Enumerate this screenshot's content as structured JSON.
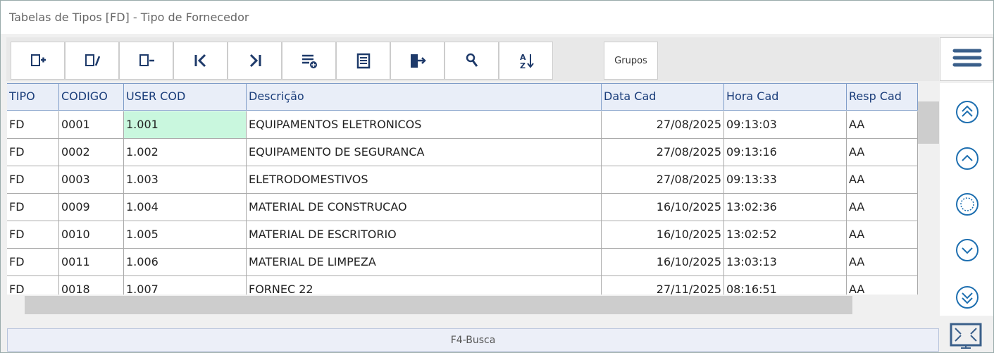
{
  "window": {
    "title": "Tabelas de Tipos [FD] - Tipo de Fornecedor"
  },
  "toolbar": {
    "groups_button": "Grupos"
  },
  "table": {
    "columns": [
      "TIPO",
      "CODIGO",
      "USER COD",
      "Descrição",
      "Data Cad",
      "Hora Cad",
      "Resp Cad"
    ],
    "rows": [
      [
        "FD",
        "0001",
        "1.001",
        "EQUIPAMENTOS ELETRONICOS",
        "27/08/2025",
        "09:13:03",
        "AA"
      ],
      [
        "FD",
        "0002",
        "1.002",
        "EQUIPAMENTO DE SEGURANCA",
        "27/08/2025",
        "09:13:16",
        "AA"
      ],
      [
        "FD",
        "0003",
        "1.003",
        "ELETRODOMESTIVOS",
        "27/08/2025",
        "09:13:33",
        "AA"
      ],
      [
        "FD",
        "0009",
        "1.004",
        "MATERIAL DE CONSTRUCAO",
        "16/10/2025",
        "13:02:36",
        "AA"
      ],
      [
        "FD",
        "0010",
        "1.005",
        "MATERIAL DE ESCRITORIO",
        "16/10/2025",
        "13:02:52",
        "AA"
      ],
      [
        "FD",
        "0011",
        "1.006",
        "MATERIAL DE LIMPEZA",
        "16/10/2025",
        "13:03:13",
        "AA"
      ],
      [
        "FD",
        "0018",
        "1.007",
        "FORNEC 22",
        "27/11/2025",
        "08:16:51",
        "AA"
      ]
    ]
  },
  "status_bar": {
    "text": "F4-Busca"
  }
}
